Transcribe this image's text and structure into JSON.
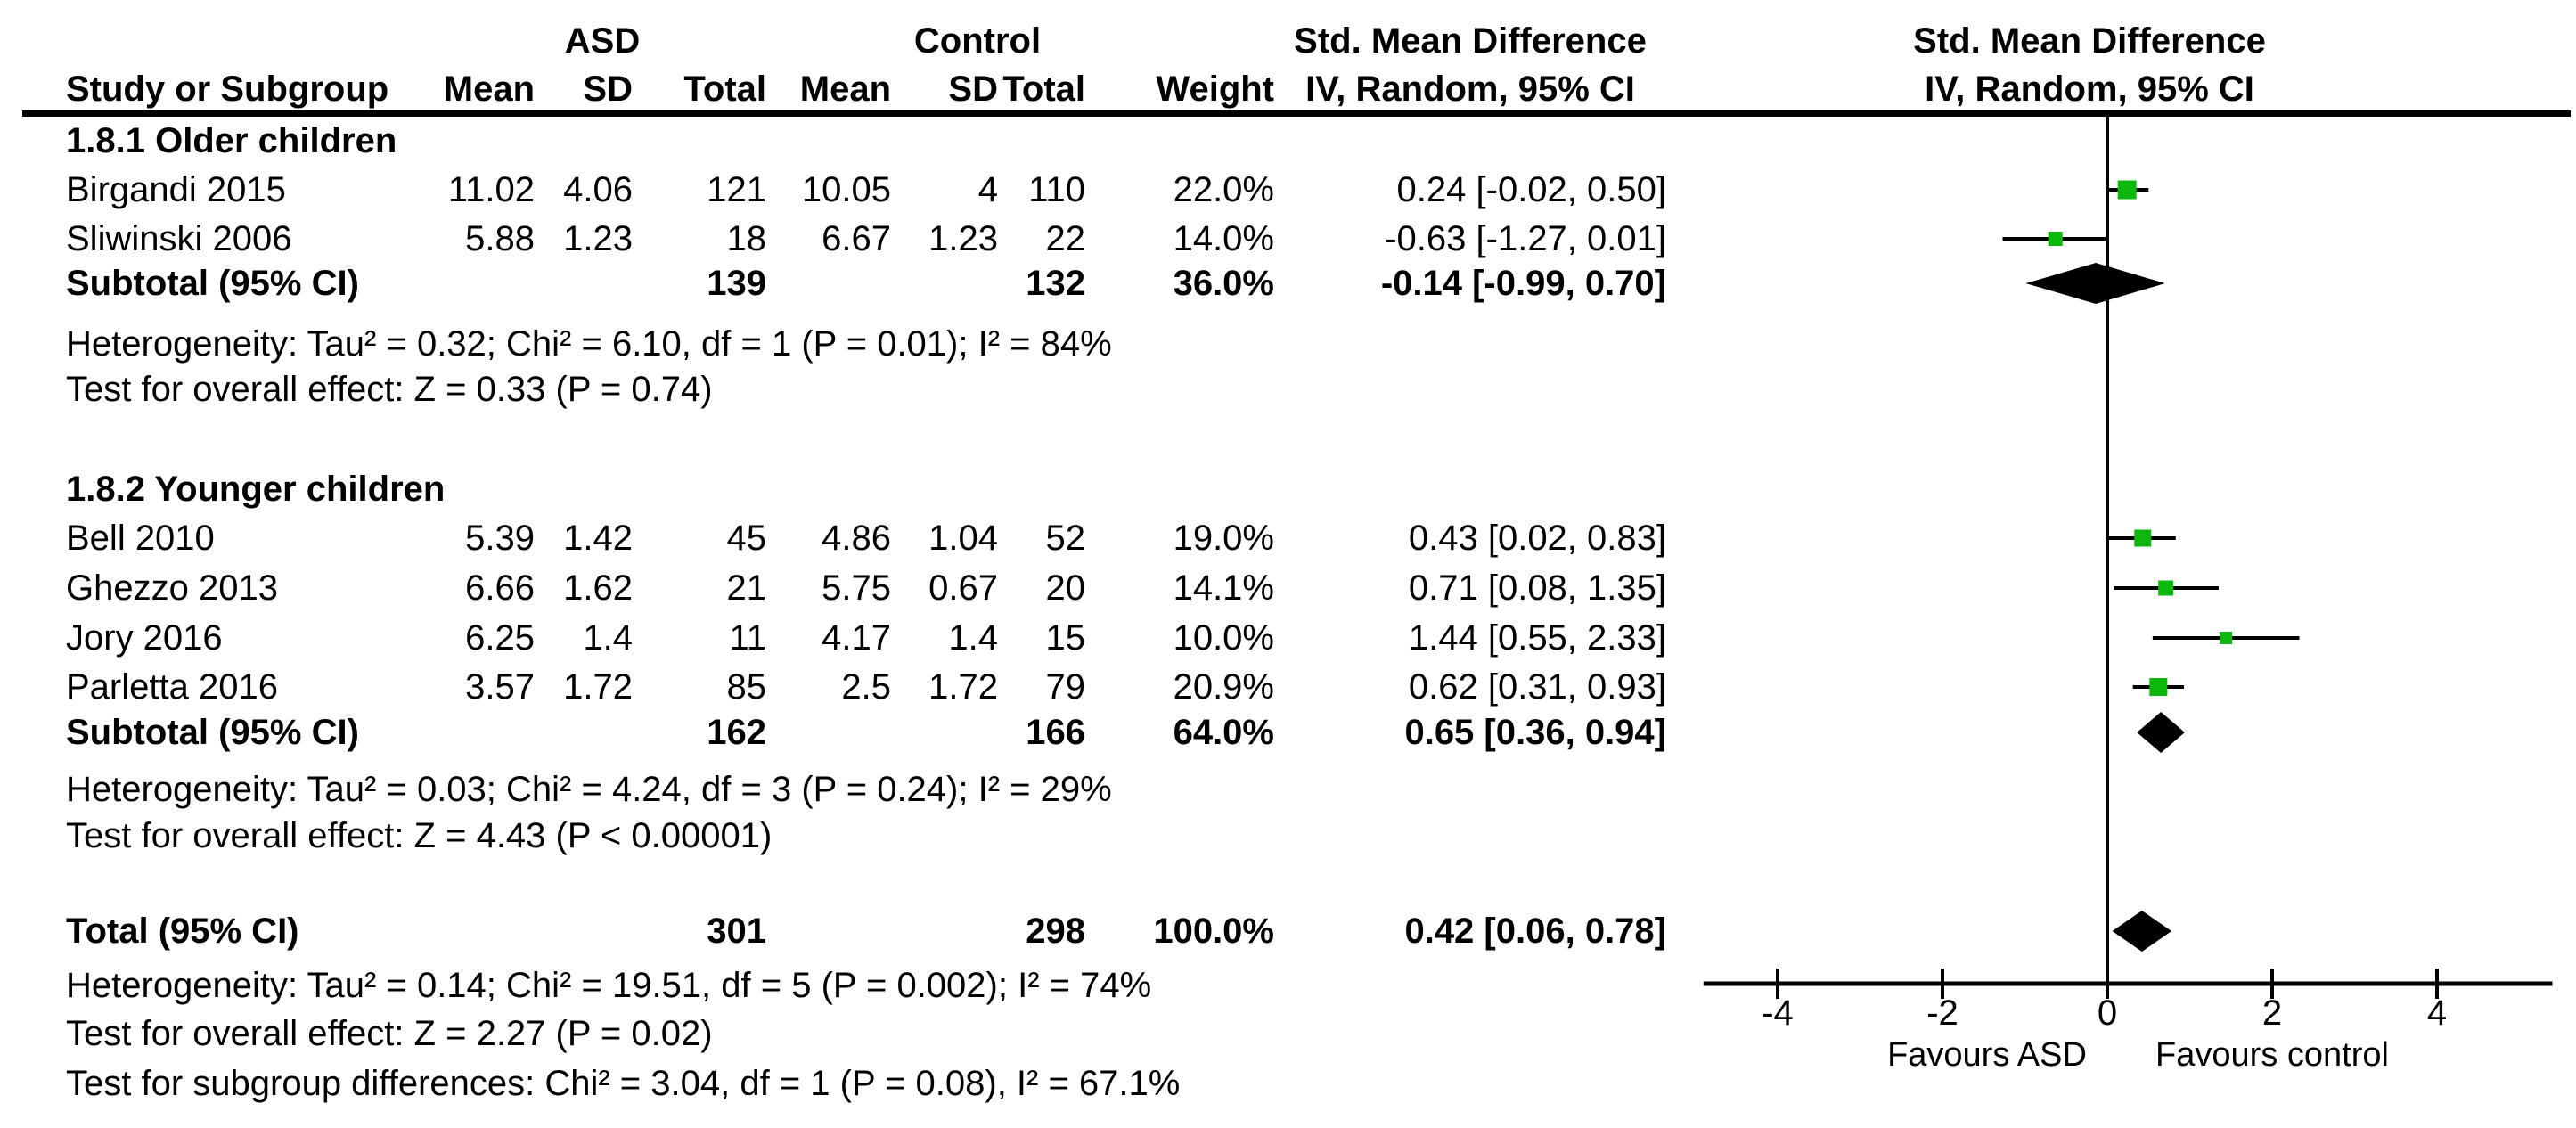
{
  "chart_data": {
    "type": "forest",
    "effect_measure": "Std. Mean Difference",
    "header": {
      "study_col": "Study or Subgroup",
      "group1": "ASD",
      "group2": "Control",
      "cols": [
        "Mean",
        "SD",
        "Total",
        "Mean",
        "SD",
        "Total",
        "Weight"
      ],
      "effect_col_title": "Std. Mean Difference",
      "effect_col_sub": "IV, Random, 95% CI",
      "plot_col_title": "Std. Mean Difference",
      "plot_col_sub": "IV, Random, 95% CI"
    },
    "subgroups": [
      {
        "title": "1.8.1 Older children",
        "studies": [
          {
            "name": "Birgandi 2015",
            "mean1": "11.02",
            "sd1": "4.06",
            "total1": "121",
            "mean2": "10.05",
            "sd2": "4",
            "total2": "110",
            "weight": "22.0%",
            "weight_pct": 22.0,
            "effect": "0.24 [-0.02, 0.50]",
            "smd": 0.24,
            "lo": -0.02,
            "hi": 0.5
          },
          {
            "name": "Sliwinski 2006",
            "mean1": "5.88",
            "sd1": "1.23",
            "total1": "18",
            "mean2": "6.67",
            "sd2": "1.23",
            "total2": "22",
            "weight": "14.0%",
            "weight_pct": 14.0,
            "effect": "-0.63 [-1.27, 0.01]",
            "smd": -0.63,
            "lo": -1.27,
            "hi": 0.01
          }
        ],
        "subtotal": {
          "label": "Subtotal (95% CI)",
          "total1": "139",
          "total2": "132",
          "weight": "36.0%",
          "effect": "-0.14 [-0.99, 0.70]",
          "smd": -0.14,
          "lo": -0.99,
          "hi": 0.7
        },
        "heterogeneity": "Heterogeneity: Tau² = 0.32; Chi² = 6.10, df = 1 (P = 0.01); I² = 84%",
        "overall": "Test for overall effect: Z = 0.33 (P = 0.74)"
      },
      {
        "title": "1.8.2 Younger children",
        "studies": [
          {
            "name": "Bell 2010",
            "mean1": "5.39",
            "sd1": "1.42",
            "total1": "45",
            "mean2": "4.86",
            "sd2": "1.04",
            "total2": "52",
            "weight": "19.0%",
            "weight_pct": 19.0,
            "effect": "0.43 [0.02, 0.83]",
            "smd": 0.43,
            "lo": 0.02,
            "hi": 0.83
          },
          {
            "name": "Ghezzo 2013",
            "mean1": "6.66",
            "sd1": "1.62",
            "total1": "21",
            "mean2": "5.75",
            "sd2": "0.67",
            "total2": "20",
            "weight": "14.1%",
            "weight_pct": 14.1,
            "effect": "0.71 [0.08, 1.35]",
            "smd": 0.71,
            "lo": 0.08,
            "hi": 1.35
          },
          {
            "name": "Jory 2016",
            "mean1": "6.25",
            "sd1": "1.4",
            "total1": "11",
            "mean2": "4.17",
            "sd2": "1.4",
            "total2": "15",
            "weight": "10.0%",
            "weight_pct": 10.0,
            "effect": "1.44 [0.55, 2.33]",
            "smd": 1.44,
            "lo": 0.55,
            "hi": 2.33
          },
          {
            "name": "Parletta 2016",
            "mean1": "3.57",
            "sd1": "1.72",
            "total1": "85",
            "mean2": "2.5",
            "sd2": "1.72",
            "total2": "79",
            "weight": "20.9%",
            "weight_pct": 20.9,
            "effect": "0.62 [0.31, 0.93]",
            "smd": 0.62,
            "lo": 0.31,
            "hi": 0.93
          }
        ],
        "subtotal": {
          "label": "Subtotal (95% CI)",
          "total1": "162",
          "total2": "166",
          "weight": "64.0%",
          "effect": "0.65 [0.36, 0.94]",
          "smd": 0.65,
          "lo": 0.36,
          "hi": 0.94
        },
        "heterogeneity": "Heterogeneity: Tau² = 0.03; Chi² = 4.24, df = 3 (P = 0.24); I² = 29%",
        "overall": "Test for overall effect: Z = 4.43 (P < 0.00001)"
      }
    ],
    "total": {
      "label": "Total (95% CI)",
      "total1": "301",
      "total2": "298",
      "weight": "100.0%",
      "effect": "0.42 [0.06, 0.78]",
      "smd": 0.42,
      "lo": 0.06,
      "hi": 0.78,
      "heterogeneity": "Heterogeneity: Tau² = 0.14; Chi² = 19.51, df = 5 (P = 0.002); I² = 74%",
      "overall": "Test for overall effect: Z = 2.27 (P = 0.02)",
      "subgroup_diff": "Test for subgroup differences: Chi² = 3.04, df = 1 (P = 0.08), I² = 67.1%"
    },
    "axis": {
      "ticks": [
        -4,
        -2,
        0,
        2,
        4
      ],
      "range": [
        -4.9,
        5.4
      ],
      "left_label": "Favours ASD",
      "right_label": "Favours control"
    },
    "colors": {
      "square": "#0bb80b",
      "diamond": "#000000",
      "line": "#000000",
      "text": "#000000"
    }
  }
}
